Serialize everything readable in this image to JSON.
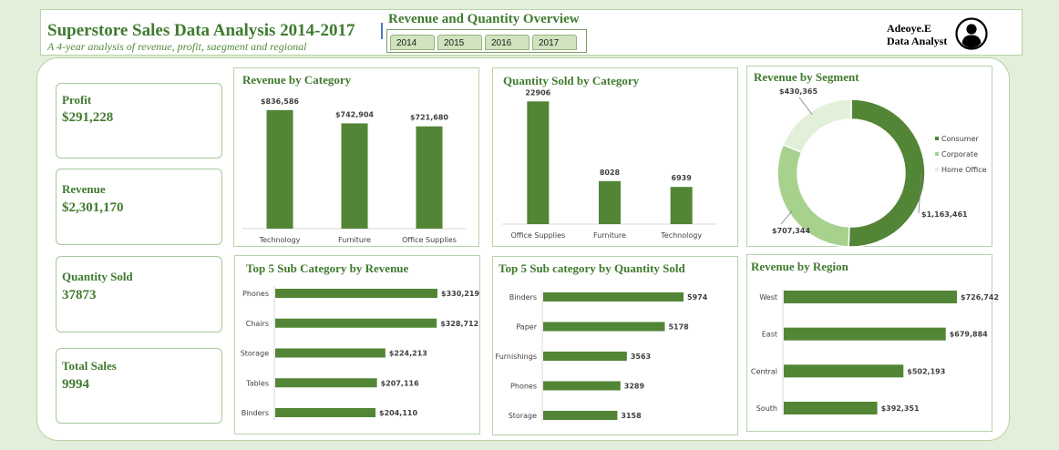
{
  "header": {
    "title": "Superstore Sales Data Analysis 2014-2017",
    "subtitle": "A 4-year analysis of revenue, profit, saegment and regional",
    "overview_title": "Revenue and Quantity Overview",
    "years": [
      "2014",
      "2015",
      "2016",
      "2017"
    ],
    "author_name": "Adeoye.E",
    "author_role": "Data Analyst"
  },
  "kpis": [
    {
      "label": "Profit",
      "value": "$291,228"
    },
    {
      "label": "Revenue",
      "value": "$2,301,170"
    },
    {
      "label": "Quantity Sold",
      "value": "37873"
    },
    {
      "label": "Total Sales",
      "value": "9994"
    }
  ],
  "colors": {
    "bar": "#528535",
    "accent": "#3f7a2e",
    "corporate": "#a9d18e",
    "home_office": "#e2efd9"
  },
  "chart_data": [
    {
      "type": "bar",
      "title": "Revenue by Category",
      "categories": [
        "Technology",
        "Furniture",
        "Office Supplies"
      ],
      "values": [
        836586,
        742904,
        721680
      ],
      "labels": [
        "$836,586",
        "$742,904",
        "$721,680"
      ],
      "ylim": [
        0,
        900000
      ]
    },
    {
      "type": "bar",
      "title": "Quantity Sold by Category",
      "categories": [
        "Office Supplies",
        "Furniture",
        "Technology"
      ],
      "values": [
        22906,
        8028,
        6939
      ],
      "labels": [
        "22906",
        "8028",
        "6939"
      ],
      "ylim": [
        0,
        25000
      ]
    },
    {
      "type": "pie",
      "title": "Revenue by Segment",
      "categories": [
        "Consumer",
        "Corporate",
        "Home Office"
      ],
      "values": [
        1163461,
        707344,
        430365
      ],
      "labels": [
        "$1,163,461",
        "$707,344",
        "$430,365"
      ],
      "legend": "right"
    },
    {
      "type": "bar",
      "orientation": "horizontal",
      "title": "Top 5 Sub Category by Revenue",
      "categories": [
        "Phones",
        "Chairs",
        "Storage",
        "Tables",
        "Binders"
      ],
      "values": [
        330219,
        328712,
        224213,
        207116,
        204110
      ],
      "labels": [
        "$330,219",
        "$328,712",
        "$224,213",
        "$207,116",
        "$204,110"
      ]
    },
    {
      "type": "bar",
      "orientation": "horizontal",
      "title": "Top 5 Sub category by Quantity Sold",
      "categories": [
        "Binders",
        "Paper",
        "Furnishings",
        "Phones",
        "Storage"
      ],
      "values": [
        5974,
        5178,
        3563,
        3289,
        3158
      ],
      "labels": [
        "5974",
        "5178",
        "3563",
        "3289",
        "3158"
      ]
    },
    {
      "type": "bar",
      "orientation": "horizontal",
      "title": "Revenue by Region",
      "categories": [
        "West",
        "East",
        "Central",
        "South"
      ],
      "values": [
        726742,
        679884,
        502193,
        392351
      ],
      "labels": [
        "$726,742",
        "$679,884",
        "$502,193",
        "$392,351"
      ]
    }
  ]
}
